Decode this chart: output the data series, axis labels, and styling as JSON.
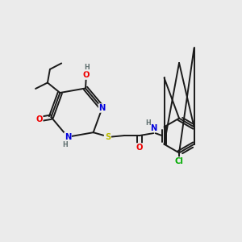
{
  "bg_color": "#ebebeb",
  "bond_color": "#1a1a1a",
  "bond_width": 1.4,
  "atom_colors": {
    "N": "#0000dd",
    "O": "#ee0000",
    "S": "#bbbb00",
    "Cl": "#00aa00",
    "H": "#607070"
  },
  "font_size": 7.2,
  "small_font_size": 5.8
}
